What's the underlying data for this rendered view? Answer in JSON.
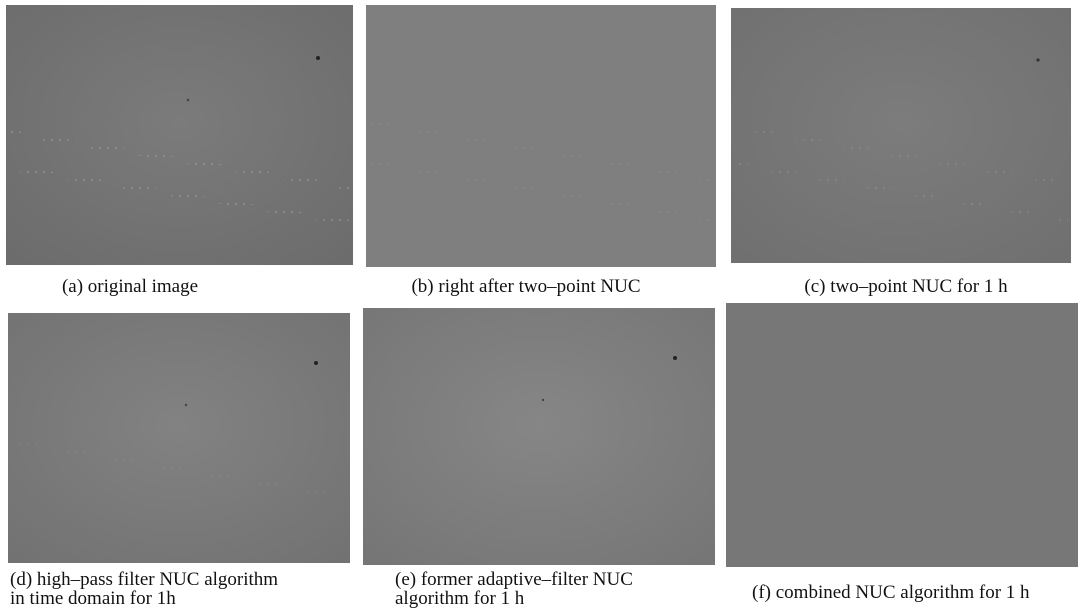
{
  "panels": [
    {
      "caption": [
        "(a) original image"
      ]
    },
    {
      "caption": [
        "(b) right after two–point NUC"
      ]
    },
    {
      "caption": [
        "(c) two–point NUC for 1 h"
      ]
    },
    {
      "caption": [
        "(d) high–pass filter NUC algorithm",
        "in time domain for 1h"
      ]
    },
    {
      "caption": [
        "(e) former adaptive–filter NUC",
        "algorithm for 1 h"
      ]
    },
    {
      "caption": [
        "(f) combined NUC algorithm for 1 h"
      ]
    }
  ]
}
